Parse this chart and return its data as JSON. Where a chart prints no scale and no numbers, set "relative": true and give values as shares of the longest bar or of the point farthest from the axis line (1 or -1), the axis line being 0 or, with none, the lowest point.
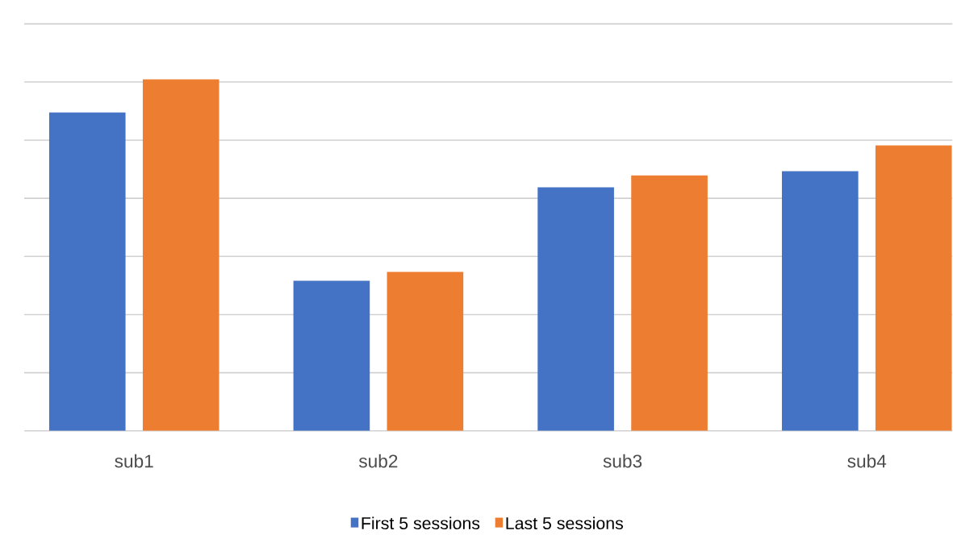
{
  "chart_data": {
    "type": "bar",
    "relative": true,
    "categories": [
      "sub1",
      "sub2",
      "sub3",
      "sub4"
    ],
    "series": [
      {
        "name": "First 5 sessions",
        "color": "#4472c4",
        "values": [
          0.906,
          0.427,
          0.693,
          0.739
        ]
      },
      {
        "name": "Last 5 sessions",
        "color": "#ed7d31",
        "values": [
          1,
          0.452,
          0.727,
          0.812
        ]
      }
    ],
    "grid": "y",
    "legend": "bottom"
  }
}
